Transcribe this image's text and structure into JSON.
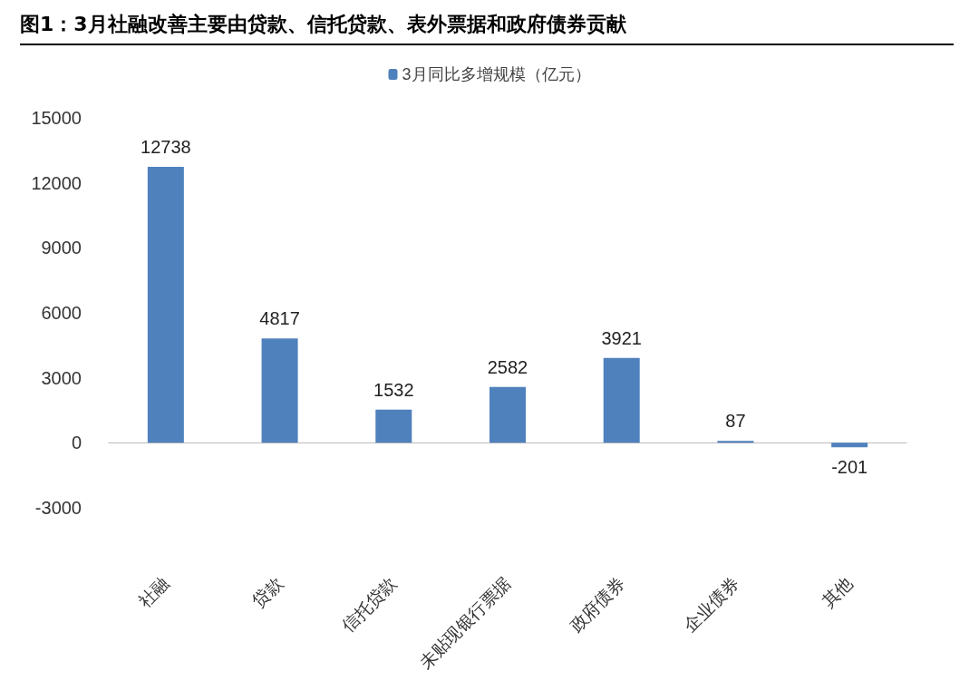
{
  "chart_data": {
    "type": "bar",
    "title": "图1：3月社融改善主要由贷款、信托贷款、表外票据和政府债券贡献",
    "categories": [
      "社融",
      "贷款",
      "信托贷款",
      "未贴现银行票据",
      "政府债券",
      "企业债券",
      "其他"
    ],
    "series": [
      {
        "name": "3月同比多增规模（亿元）",
        "color": "#4f81bd",
        "values": [
          12738,
          4817,
          1532,
          2582,
          3921,
          87,
          -201
        ]
      }
    ],
    "ylim": [
      -3000,
      15000
    ],
    "yticks": [
      -3000,
      0,
      3000,
      6000,
      9000,
      12000,
      15000
    ],
    "data_labels": true,
    "legend": "top"
  }
}
